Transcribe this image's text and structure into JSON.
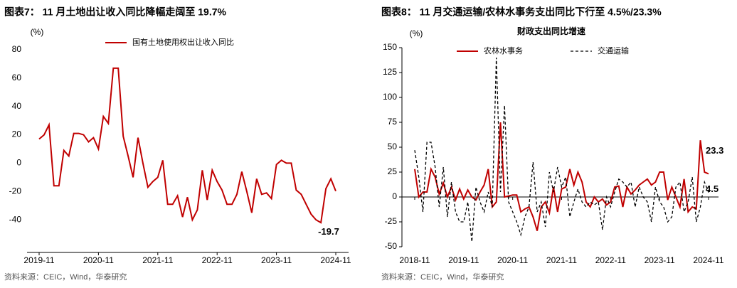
{
  "chart_data": [
    {
      "type": "line",
      "title": "图表7：  11 月土地出让收入同比降幅走阔至 19.7%",
      "ylabel": "(%)",
      "source": "资料来源：CEIC，Wind，华泰研究",
      "categories": [
        "2019-11",
        null,
        null,
        null,
        null,
        null,
        null,
        null,
        null,
        null,
        null,
        null,
        "2020-11",
        null,
        null,
        null,
        null,
        null,
        null,
        null,
        null,
        null,
        null,
        null,
        "2021-11",
        null,
        null,
        null,
        null,
        null,
        null,
        null,
        null,
        null,
        null,
        null,
        "2022-11",
        null,
        null,
        null,
        null,
        null,
        null,
        null,
        null,
        null,
        null,
        null,
        "2023-11",
        null,
        null,
        null,
        null,
        null,
        null,
        null,
        null,
        null,
        null,
        null,
        "2024-11"
      ],
      "series": [
        {
          "name": "国有土地使用权出让收入同比",
          "color": "#c00000",
          "style": "solid",
          "end_label": true,
          "values": [
            17,
            20,
            27,
            -16,
            -16,
            9,
            5,
            21,
            21,
            20,
            15,
            18,
            10,
            33,
            28,
            67,
            67,
            19,
            5,
            -10,
            18,
            0,
            -17,
            -13,
            -10,
            2,
            -29,
            -29,
            -23,
            -38,
            -24,
            -40,
            -33,
            -5,
            -26,
            -5,
            -13,
            -19,
            -29,
            -29,
            -22,
            -6,
            -20,
            -35,
            -11,
            -22,
            -21,
            -25,
            -1,
            2,
            0,
            0,
            -19,
            -22,
            -29,
            -36,
            -40,
            -42,
            -18,
            -11,
            -19.7
          ]
        }
      ],
      "ylim": [
        -60,
        80
      ],
      "yticks": [
        -40,
        -20,
        0,
        20,
        40,
        60,
        80
      ],
      "legend": "upper center"
    },
    {
      "type": "line",
      "title": "图表8：  11 月交通运输/农林水事务支出同比下行至 4.5%/23.3%",
      "subtitle": "财政支出同比增速",
      "ylabel": "(%)",
      "source": "资料来源：CEIC，Wind，华泰研究",
      "categories": [
        "2018-11",
        null,
        null,
        null,
        null,
        null,
        null,
        null,
        null,
        null,
        null,
        null,
        "2019-11",
        null,
        null,
        null,
        null,
        null,
        null,
        null,
        null,
        null,
        null,
        null,
        "2020-11",
        null,
        null,
        null,
        null,
        null,
        null,
        null,
        null,
        null,
        null,
        null,
        "2021-11",
        null,
        null,
        null,
        null,
        null,
        null,
        null,
        null,
        null,
        null,
        null,
        "2022-11",
        null,
        null,
        null,
        null,
        null,
        null,
        null,
        null,
        null,
        null,
        null,
        "2023-11",
        null,
        null,
        null,
        null,
        null,
        null,
        null,
        null,
        null,
        null,
        null,
        "2024-11"
      ],
      "series": [
        {
          "name": "农林水事务",
          "color": "#c00000",
          "style": "solid",
          "end_label": true,
          "values": [
            28,
            0,
            5,
            5,
            28,
            20,
            3,
            14,
            0,
            10,
            -3,
            8,
            -2,
            7,
            0,
            -3,
            5,
            12,
            28,
            -10,
            -5,
            75,
            0,
            1,
            2,
            2,
            -15,
            -12,
            -10,
            -20,
            -34,
            -10,
            -5,
            -16,
            10,
            -15,
            8,
            10,
            28,
            12,
            25,
            15,
            -5,
            -10,
            0,
            -5,
            -2,
            -8,
            -5,
            10,
            11,
            -10,
            10,
            3,
            7,
            12,
            15,
            18,
            12,
            15,
            25,
            25,
            -3,
            10,
            0,
            -10,
            18,
            -15,
            -10,
            -12,
            57,
            25,
            23.3
          ]
        },
        {
          "name": "交通运输",
          "color": "#000000",
          "style": "dashed",
          "end_label": true,
          "values": [
            47,
            20,
            -15,
            55,
            55,
            30,
            -10,
            30,
            -20,
            15,
            -15,
            -25,
            -25,
            -5,
            -45,
            10,
            -5,
            -15,
            5,
            -10,
            140,
            5,
            92,
            -5,
            -15,
            -25,
            -38,
            -20,
            -10,
            35,
            -15,
            -5,
            -30,
            25,
            5,
            30,
            10,
            20,
            -20,
            -5,
            8,
            -5,
            -10,
            -5,
            -8,
            -5,
            -33,
            0,
            -10,
            5,
            18,
            15,
            10,
            15,
            -10,
            10,
            0,
            -5,
            -25,
            10,
            -5,
            -10,
            -25,
            -20,
            10,
            15,
            -15,
            -5,
            20,
            -25,
            -10,
            15,
            4.5
          ]
        }
      ],
      "ylim": [
        -50,
        150
      ],
      "yticks": [
        -50,
        -25,
        0,
        25,
        50,
        75,
        100,
        125,
        150
      ],
      "legend": "upper center"
    }
  ]
}
